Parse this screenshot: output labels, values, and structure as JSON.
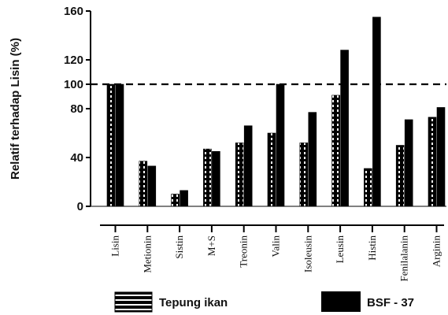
{
  "chart_data": {
    "type": "bar",
    "ylabel": "Relatif terhadap Lisin (%)",
    "ylim": [
      0,
      160
    ],
    "yticks": [
      0,
      40,
      80,
      100,
      120,
      160
    ],
    "reference_line": 100,
    "categories": [
      "Lisin",
      "Metionin",
      "Sistin",
      "M+S",
      "Treonin",
      "Valin",
      "Isoleusin",
      "Leusin",
      "Histin",
      "Fenilalanin",
      "Arginin"
    ],
    "series": [
      {
        "name": "Tepung ikan",
        "values": [
          100,
          37,
          10,
          47,
          52,
          60,
          52,
          91,
          31,
          50,
          73
        ]
      },
      {
        "name": "BSF - 37",
        "values": [
          100,
          33,
          13,
          45,
          66,
          100,
          77,
          128,
          155,
          71,
          81
        ]
      }
    ],
    "legend_position": "bottom",
    "colors": {
      "bar": "#000000",
      "stripe": "#ffffff"
    }
  }
}
